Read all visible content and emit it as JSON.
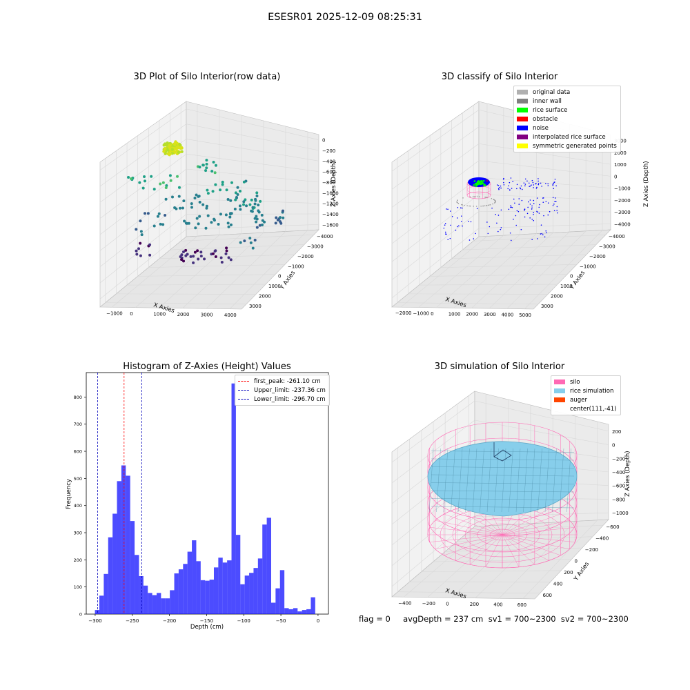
{
  "suptitle": "ESESR01 2025-12-09 08:25:31",
  "footer": "flag = 0     avgDepth = 237 cm  sv1 = 700~2300  sv2 = 700~2300",
  "chart_data": [
    {
      "type": "scatter",
      "title": "3D Plot of Silo Interior(row data)",
      "xlabel": "X Axies",
      "ylabel": "Y Axies",
      "zlabel": "Z Axies (Depth)",
      "x_ticks": [
        "−1000",
        "0",
        "1000",
        "2000",
        "3000",
        "4000"
      ],
      "y_ticks": [
        "−4000",
        "−3000",
        "−2000",
        "−1000",
        "0",
        "1000",
        "2000",
        "3000"
      ],
      "z_ticks": [
        "−1600",
        "−1400",
        "−1200",
        "−1000",
        "−800",
        "−600",
        "−400",
        "−200",
        "0"
      ],
      "colormap": "viridis"
    },
    {
      "type": "scatter",
      "title": "3D classify of Silo Interior",
      "xlabel": "X Axies",
      "ylabel": "Y Axies",
      "zlabel": "Z Axies (Depth)",
      "x_ticks": [
        "−2000",
        "−1000",
        "0",
        "1000",
        "2000",
        "3000",
        "4000",
        "5000"
      ],
      "y_ticks": [
        "−4000",
        "−3000",
        "−2000",
        "−1000",
        "0",
        "1000",
        "2000",
        "3000"
      ],
      "z_ticks": [
        "−4000",
        "−3000",
        "−2000",
        "−1000",
        "0",
        "1000",
        "2000",
        "3000"
      ],
      "legend": [
        {
          "label": "original data",
          "color": "#b0b0b0"
        },
        {
          "label": "inner wall",
          "color": "#808080"
        },
        {
          "label": "rice surface",
          "color": "#00ff00"
        },
        {
          "label": "obstacle",
          "color": "#ff0000"
        },
        {
          "label": "noise",
          "color": "#0000ff"
        },
        {
          "label": "interpolated rice surface",
          "color": "#800080"
        },
        {
          "label": "symmetric generated points",
          "color": "#ffff00"
        }
      ]
    },
    {
      "type": "bar",
      "title": "Histogram of Z-Axies (Height) Values",
      "xlabel": "Depth (cm)",
      "ylabel": "Frequency",
      "xlim": [
        -312,
        14
      ],
      "ylim": [
        0,
        890
      ],
      "x_ticks": [
        -300,
        -250,
        -200,
        -150,
        -100,
        -50,
        0
      ],
      "y_ticks": [
        0,
        100,
        200,
        300,
        400,
        500,
        600,
        700,
        800
      ],
      "bin_start": -300.3,
      "bin_width": 5.93,
      "values": [
        15,
        68,
        148,
        283,
        370,
        490,
        548,
        510,
        343,
        218,
        140,
        105,
        78,
        70,
        78,
        58,
        58,
        88,
        150,
        165,
        185,
        230,
        272,
        195,
        125,
        123,
        127,
        172,
        208,
        190,
        198,
        850,
        292,
        110,
        142,
        152,
        170,
        205,
        330,
        355,
        42,
        95,
        162,
        22,
        18,
        22,
        10,
        15,
        18,
        62
      ],
      "bar_color": "#0000ff",
      "vlines": [
        {
          "label": "first_peak: -261.10 cm",
          "x": -261.1,
          "color": "#ff0000"
        },
        {
          "label": "Upper_limit: -237.36 cm",
          "x": -237.36,
          "color": "#0000bb"
        },
        {
          "label": "Lower_limit: -296.70 cm",
          "x": -296.7,
          "color": "#0000bb"
        }
      ]
    },
    {
      "type": "3d-surface",
      "title": "3D simulation of Silo Interior",
      "xlabel": "X Axies",
      "ylabel": "Y Axies",
      "zlabel": "Z Axies (Depth)",
      "x_ticks": [
        "−400",
        "−200",
        "0",
        "200",
        "400",
        "600"
      ],
      "y_ticks": [
        "−600",
        "−400",
        "−200",
        "0",
        "200",
        "400",
        "600"
      ],
      "z_ticks": [
        "−1000",
        "−800",
        "−600",
        "−400",
        "−200",
        "0",
        "200"
      ],
      "legend": [
        {
          "label": "silo",
          "color": "#ff69b4"
        },
        {
          "label": "rice simulation",
          "color": "#87ceeb"
        },
        {
          "label": "auger",
          "color": "#ff4500"
        },
        {
          "label": "center(111,-41)",
          "color": "#ffffff"
        }
      ]
    }
  ]
}
